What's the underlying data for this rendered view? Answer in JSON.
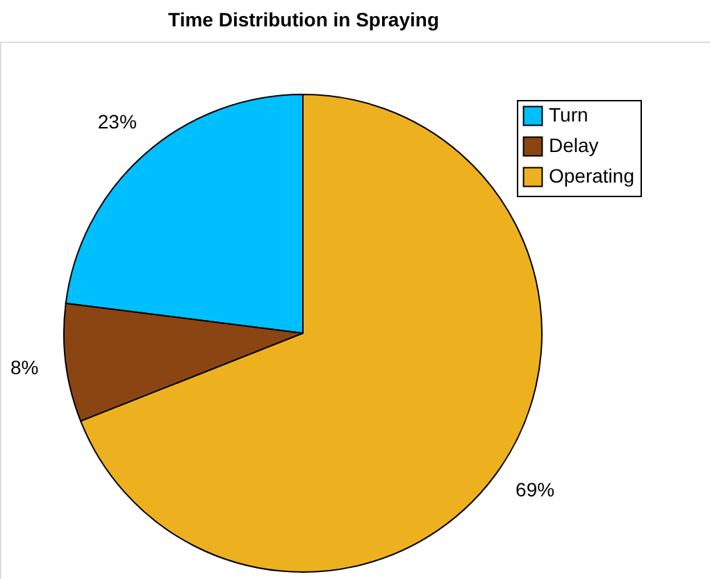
{
  "chart_data": {
    "type": "pie",
    "title": "Time Distribution in Spraying",
    "categories": [
      "Turn",
      "Delay",
      "Operating"
    ],
    "values": [
      23,
      8,
      69
    ],
    "colors": [
      "#00bfff",
      "#8b4513",
      "#edb120"
    ],
    "value_labels": [
      "23%",
      "8%",
      "69%"
    ],
    "legend": "top right"
  }
}
